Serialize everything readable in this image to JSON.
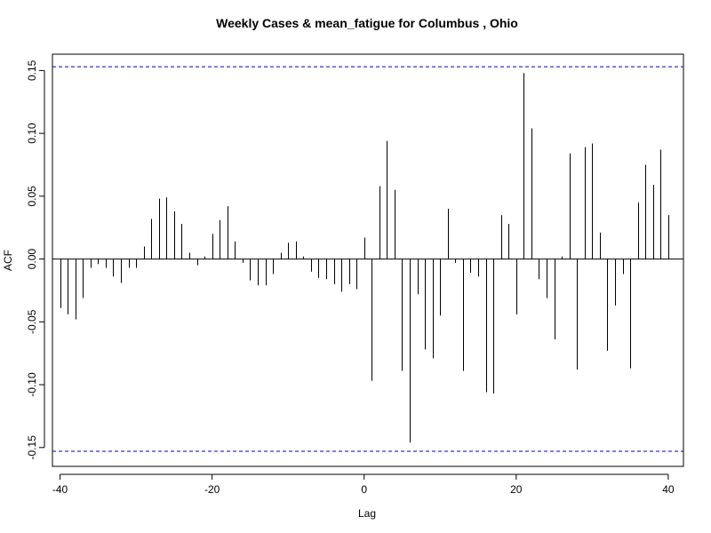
{
  "chart_data": {
    "type": "bar",
    "title": "Weekly Cases & mean_fatigue for Columbus , Ohio",
    "xlabel": "Lag",
    "ylabel": "ACF",
    "xlim": [
      -41,
      42
    ],
    "ylim": [
      -0.165,
      0.163
    ],
    "xticks": [
      -40,
      -20,
      0,
      20,
      40
    ],
    "yticks": [
      -0.15,
      -0.1,
      -0.05,
      0.0,
      0.05,
      0.1,
      0.15
    ],
    "ytick_labels": [
      "-0.15",
      "-0.10",
      "-0.05",
      "0.00",
      "0.05",
      "0.10",
      "0.15"
    ],
    "xtick_labels": [
      "-40",
      "-20",
      "0",
      "20",
      "40"
    ],
    "confidence_bound": 0.153,
    "confidence_color": "#0000cc",
    "grid": false,
    "series": [
      {
        "lags": [
          -40,
          -39,
          -38,
          -37,
          -36,
          -35,
          -34,
          -33,
          -32,
          -31,
          -30,
          -29,
          -28,
          -27,
          -26,
          -25,
          -24,
          -23,
          -22,
          -21,
          -20,
          -19,
          -18,
          -17,
          -16,
          -15,
          -14,
          -13,
          -12,
          -11,
          -10,
          -9,
          -8,
          -7,
          -6,
          -5,
          -4,
          -3,
          -2,
          -1,
          0,
          1,
          2,
          3,
          4,
          5,
          6,
          7,
          8,
          9,
          10,
          11,
          12,
          13,
          14,
          15,
          16,
          17,
          18,
          19,
          20,
          21,
          22,
          23,
          24,
          25,
          26,
          27,
          28,
          29,
          30,
          31,
          32,
          33,
          34,
          35,
          36,
          37,
          38,
          39,
          40
        ],
        "values": [
          -0.039,
          -0.044,
          -0.048,
          -0.031,
          -0.007,
          -0.004,
          -0.007,
          -0.014,
          -0.019,
          -0.007,
          -0.007,
          0.01,
          0.032,
          0.048,
          0.049,
          0.038,
          0.028,
          0.005,
          -0.005,
          0.002,
          0.02,
          0.031,
          0.042,
          0.014,
          -0.003,
          -0.017,
          -0.021,
          -0.021,
          -0.012,
          0.005,
          0.013,
          0.014,
          0.002,
          -0.01,
          -0.015,
          -0.016,
          -0.02,
          -0.026,
          -0.02,
          -0.024,
          0.017,
          -0.097,
          0.058,
          0.094,
          0.055,
          -0.089,
          -0.146,
          -0.028,
          -0.072,
          -0.079,
          -0.045,
          0.04,
          -0.003,
          -0.089,
          -0.011,
          -0.014,
          -0.106,
          -0.107,
          0.035,
          0.028,
          -0.044,
          0.148,
          0.104,
          -0.016,
          -0.031,
          -0.064,
          0.002,
          0.084,
          -0.088,
          0.089,
          0.092,
          0.021,
          -0.073,
          -0.037,
          -0.012,
          -0.087,
          0.045,
          0.075,
          0.059,
          0.087,
          0.035
        ]
      }
    ]
  }
}
